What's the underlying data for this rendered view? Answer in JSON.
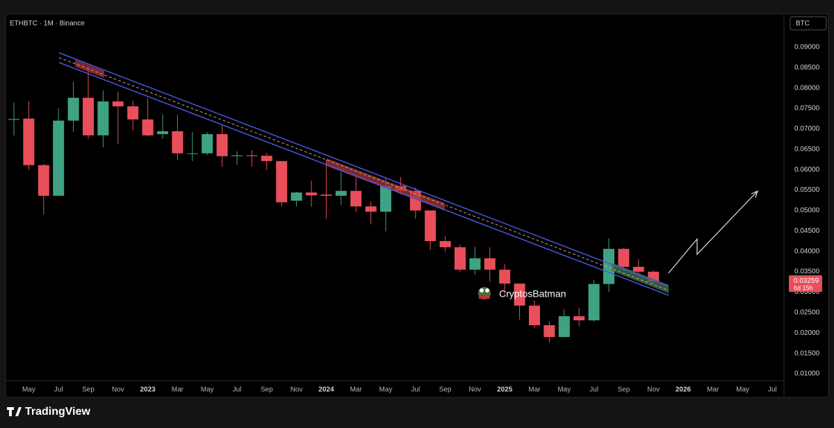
{
  "chart_data": {
    "type": "candlestick",
    "title": "ETHBTC · 1M · Binance",
    "currency_button": "BTC",
    "watermark": "CryptosBatman",
    "brand": "TradingView",
    "up_color": "#3fa383",
    "down_color": "#e84f5a",
    "grid": false,
    "last_price": 0.03259,
    "last_price_label": "0.03259",
    "countdown": "6d 15h",
    "categories": [
      null,
      "May",
      null,
      "Jul",
      null,
      "Sep",
      null,
      "Nov",
      null,
      "2023",
      null,
      "Mar",
      null,
      "May",
      null,
      "Jul",
      null,
      "Sep",
      null,
      "Nov",
      null,
      "2024",
      null,
      "Mar",
      null,
      "May",
      null,
      "Jul",
      null,
      "Sep",
      null,
      "Nov",
      null,
      "2025",
      null,
      "Mar",
      null,
      "May",
      null,
      "Jul",
      null,
      "Sep",
      null,
      "Nov",
      null,
      "2026",
      null,
      "Mar",
      null,
      "May",
      null,
      "Jul"
    ],
    "open": [
      0.0722,
      0.0725,
      0.0611,
      0.0536,
      0.072,
      0.0776,
      0.0684,
      0.0767,
      0.0755,
      0.0723,
      0.0687,
      0.0694,
      0.0639,
      0.064,
      0.0687,
      0.0633,
      0.0635,
      0.0634,
      0.0621,
      0.0524,
      0.0544,
      0.0539,
      0.0536,
      0.0548,
      0.051,
      0.0497,
      0.056,
      0.0548,
      0.05,
      0.0425,
      0.041,
      0.0355,
      0.0383,
      0.0355,
      0.0321,
      0.0267,
      0.0219,
      0.019,
      0.0241,
      0.0231,
      0.032,
      0.0406,
      0.0362,
      0.035,
      null,
      null,
      null,
      null,
      null,
      null,
      null,
      null
    ],
    "high": [
      0.0764,
      0.0767,
      0.0614,
      0.075,
      0.0815,
      0.0854,
      0.0794,
      0.0791,
      0.0769,
      0.0774,
      0.0735,
      0.0735,
      0.0692,
      0.0692,
      0.0709,
      0.0645,
      0.0648,
      0.0641,
      0.0621,
      0.0546,
      0.0573,
      0.0624,
      0.0594,
      0.0582,
      0.0522,
      0.0582,
      0.0582,
      0.0556,
      0.05,
      0.0437,
      0.0417,
      0.0411,
      0.041,
      0.0369,
      0.0321,
      0.028,
      0.0229,
      0.0258,
      0.0262,
      0.033,
      0.0432,
      0.0408,
      0.0381,
      0.0353,
      null,
      null,
      null,
      null,
      null,
      null,
      null,
      null
    ],
    "low": [
      0.0684,
      0.0599,
      0.0491,
      0.0536,
      0.0692,
      0.0675,
      0.0655,
      0.0662,
      0.0696,
      0.0682,
      0.0675,
      0.0624,
      0.0621,
      0.0635,
      0.0607,
      0.0612,
      0.0607,
      0.0599,
      0.051,
      0.051,
      0.0509,
      0.048,
      0.0514,
      0.0497,
      0.0466,
      0.0449,
      0.0539,
      0.048,
      0.0403,
      0.04,
      0.0349,
      0.0343,
      0.0326,
      0.0292,
      0.0233,
      0.0212,
      0.0177,
      0.019,
      0.0216,
      0.0228,
      0.0301,
      0.0352,
      0.0338,
      0.0318,
      null,
      null,
      null,
      null,
      null,
      null,
      null,
      null
    ],
    "close": [
      0.0724,
      0.0611,
      0.0536,
      0.072,
      0.0776,
      0.0684,
      0.0767,
      0.0755,
      0.0723,
      0.0684,
      0.0694,
      0.064,
      0.064,
      0.0687,
      0.0633,
      0.0635,
      0.0633,
      0.0621,
      0.052,
      0.0544,
      0.0537,
      0.0536,
      0.0548,
      0.051,
      0.0497,
      0.056,
      0.0548,
      0.05,
      0.0425,
      0.041,
      0.0355,
      0.0383,
      0.0355,
      0.0321,
      0.0267,
      0.0219,
      0.019,
      0.0241,
      0.0231,
      0.032,
      0.0406,
      0.0362,
      0.035,
      0.03259,
      null,
      null,
      null,
      null,
      null,
      null,
      null,
      null
    ],
    "ylim": [
      0.0083,
      0.0978
    ],
    "yticks": [
      {
        "value": 0.01,
        "label": "0.01000"
      },
      {
        "value": 0.015,
        "label": "0.01500"
      },
      {
        "value": 0.02,
        "label": "0.02000"
      },
      {
        "value": 0.025,
        "label": "0.02500"
      },
      {
        "value": 0.03,
        "label": "0.03000"
      },
      {
        "value": 0.035,
        "label": "0.03500"
      },
      {
        "value": 0.04,
        "label": "0.04000"
      },
      {
        "value": 0.045,
        "label": "0.04500"
      },
      {
        "value": 0.05,
        "label": "0.05000"
      },
      {
        "value": 0.055,
        "label": "0.05500"
      },
      {
        "value": 0.06,
        "label": "0.06000"
      },
      {
        "value": 0.065,
        "label": "0.06500"
      },
      {
        "value": 0.07,
        "label": "0.07000"
      },
      {
        "value": 0.075,
        "label": "0.07500"
      },
      {
        "value": 0.08,
        "label": "0.08000"
      },
      {
        "value": 0.085,
        "label": "0.08500"
      },
      {
        "value": 0.09,
        "label": "0.09000"
      }
    ]
  }
}
